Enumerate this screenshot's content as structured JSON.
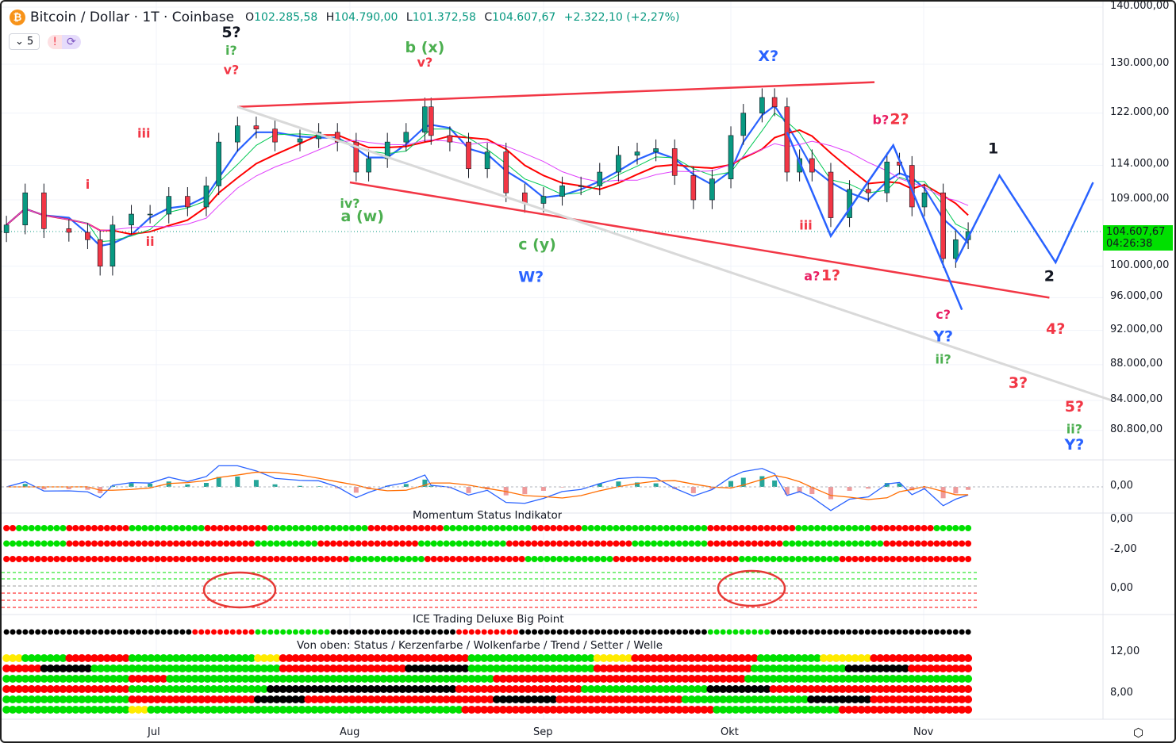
{
  "header": {
    "symbol": "Bitcoin / Dollar · 1T · Coinbase",
    "icon": "bitcoin-icon",
    "open_label": "O",
    "open": "102.285,58",
    "high_label": "H",
    "high": "104.790,00",
    "low_label": "L",
    "low": "101.372,58",
    "close_label": "C",
    "close": "104.607,67",
    "change": "+2.322,10 (+2,27%)"
  },
  "controls": {
    "collapse_count": "5",
    "alert_glyph": "!",
    "sync_icon": "refresh-icon"
  },
  "last_price": {
    "price": "104.607,67",
    "countdown": "04:26:38",
    "color": "#00e000"
  },
  "price_axis": [
    "140.000,00",
    "130.000,00",
    "122.000,00",
    "114.000,00",
    "109.000,00",
    "100.000,00",
    "96.000,00",
    "92.000,00",
    "88.000,00",
    "84.000,00",
    "80.800,00"
  ],
  "pane_axes": {
    "macd": [
      "0,00"
    ],
    "momentum": [
      "0,00",
      "-2,00",
      "0,00"
    ],
    "status": [
      "12,00",
      "8,00"
    ]
  },
  "time_axis": [
    "Jul",
    "Aug",
    "Sep",
    "Okt",
    "Nov"
  ],
  "pane_titles": {
    "momentum": "Momentum Status Indikator",
    "bigpoint": "ICE Trading Deluxe Big Point",
    "status": "Von oben: Status / Kerzenfarbe / Wolkenfarbe / Trend / Setter / Welle"
  },
  "colors": {
    "up": "#089981",
    "down": "#f23645",
    "trendline": "#f23645",
    "projection": "#2962ff",
    "green": "#00e000",
    "red": "#ff0000",
    "yellow": "#ffeb00",
    "black": "#000000"
  },
  "chart_data": {
    "type": "candlestick",
    "scale": "log",
    "ylim": [
      78000,
      140500
    ],
    "closes": [
      [
        "2025-06-07",
        105500
      ],
      [
        "2025-06-10",
        110000
      ],
      [
        "2025-06-13",
        105000
      ],
      [
        "2025-06-17",
        104500
      ],
      [
        "2025-06-20",
        103500
      ],
      [
        "2025-06-22",
        100000
      ],
      [
        "2025-06-24",
        105500
      ],
      [
        "2025-06-27",
        107000
      ],
      [
        "2025-06-30",
        107000
      ],
      [
        "2025-07-03",
        109500
      ],
      [
        "2025-07-06",
        108000
      ],
      [
        "2025-07-09",
        111000
      ],
      [
        "2025-07-11",
        117500
      ],
      [
        "2025-07-14",
        120000
      ],
      [
        "2025-07-17",
        119500
      ],
      [
        "2025-07-20",
        117500
      ],
      [
        "2025-07-24",
        118000
      ],
      [
        "2025-07-27",
        119000
      ],
      [
        "2025-07-30",
        117500
      ],
      [
        "2025-08-02",
        113000
      ],
      [
        "2025-08-04",
        115000
      ],
      [
        "2025-08-07",
        117500
      ],
      [
        "2025-08-10",
        119000
      ],
      [
        "2025-08-13",
        123000
      ],
      [
        "2025-08-14",
        118500
      ],
      [
        "2025-08-17",
        117500
      ],
      [
        "2025-08-20",
        113500
      ],
      [
        "2025-08-23",
        116000
      ],
      [
        "2025-08-26",
        110000
      ],
      [
        "2025-08-29",
        108500
      ],
      [
        "2025-09-01",
        109500
      ],
      [
        "2025-09-04",
        111000
      ],
      [
        "2025-09-07",
        111000
      ],
      [
        "2025-09-10",
        113000
      ],
      [
        "2025-09-13",
        115500
      ],
      [
        "2025-09-16",
        116000
      ],
      [
        "2025-09-19",
        116500
      ],
      [
        "2025-09-22",
        112500
      ],
      [
        "2025-09-25",
        109000
      ],
      [
        "2025-09-28",
        112000
      ],
      [
        "2025-10-01",
        118500
      ],
      [
        "2025-10-03",
        122000
      ],
      [
        "2025-10-06",
        124500
      ],
      [
        "2025-10-08",
        123000
      ],
      [
        "2025-10-10",
        113000
      ],
      [
        "2025-10-12",
        115000
      ],
      [
        "2025-10-14",
        113000
      ],
      [
        "2025-10-17",
        106500
      ],
      [
        "2025-10-20",
        110500
      ],
      [
        "2025-10-23",
        110000
      ],
      [
        "2025-10-26",
        114500
      ],
      [
        "2025-10-28",
        114000
      ],
      [
        "2025-10-30",
        108000
      ],
      [
        "2025-11-01",
        110000
      ],
      [
        "2025-11-04",
        101000
      ],
      [
        "2025-11-06",
        103500
      ],
      [
        "2025-11-08",
        104607.67
      ]
    ],
    "trendlines": [
      {
        "color": "#f23645",
        "points": [
          [
            "2025-07-14",
            123000
          ],
          [
            "2025-10-24",
            127000
          ]
        ]
      },
      {
        "color": "#f23645",
        "points": [
          [
            "2025-08-01",
            111500
          ],
          [
            "2025-11-21",
            96000
          ]
        ]
      },
      {
        "color": "#d9d9d9",
        "points": [
          [
            "2025-07-14",
            123000
          ],
          [
            "2025-12-01",
            84000
          ]
        ]
      },
      {
        "color": "#2962ff",
        "points": [
          [
            "2025-10-10",
            119000
          ],
          [
            "2025-10-17",
            104000
          ],
          [
            "2025-10-27",
            117000
          ],
          [
            "2025-11-07",
            94500
          ]
        ]
      },
      {
        "color": "#2962ff",
        "points": [
          [
            "2025-11-06",
            100500
          ],
          [
            "2025-11-13",
            112500
          ],
          [
            "2025-11-22",
            100500
          ],
          [
            "2025-11-28",
            111500
          ]
        ]
      }
    ],
    "annotations": [
      {
        "text": "5?",
        "date": "2025-07-13",
        "price": 134600,
        "color": "#131722"
      },
      {
        "text": "i?",
        "date": "2025-07-13",
        "price": 131600,
        "color": "#4caf50"
      },
      {
        "text": "v?",
        "date": "2025-07-13",
        "price": 128300,
        "color": "#f23645"
      },
      {
        "text": "b (x)",
        "date": "2025-08-13",
        "price": 132000,
        "color": "#4caf50"
      },
      {
        "text": "v?",
        "date": "2025-08-13",
        "price": 129600,
        "color": "#f23645"
      },
      {
        "text": "X?",
        "date": "2025-10-07",
        "price": 130500,
        "color": "#2962ff"
      },
      {
        "text": "iii",
        "date": "2025-06-29",
        "price": 118200,
        "color": "#f23645"
      },
      {
        "text": "i",
        "date": "2025-06-20",
        "price": 110600,
        "color": "#f23645"
      },
      {
        "text": "ii",
        "date": "2025-06-30",
        "price": 102700,
        "color": "#f23645"
      },
      {
        "text": "iv?",
        "date": "2025-08-01",
        "price": 107900,
        "color": "#4caf50"
      },
      {
        "text": "a (w)",
        "date": "2025-08-03",
        "price": 106000,
        "color": "#4caf50"
      },
      {
        "text": "c (y)",
        "date": "2025-08-31",
        "price": 102200,
        "color": "#4caf50"
      },
      {
        "text": "W?",
        "date": "2025-08-30",
        "price": 98000,
        "color": "#2962ff"
      },
      {
        "text": "iii",
        "date": "2025-10-13",
        "price": 104900,
        "color": "#f23645"
      },
      {
        "text": "a?",
        "date": "2025-10-14",
        "price": 98200,
        "color": "#e91e63"
      },
      {
        "text": "1?",
        "date": "2025-10-17",
        "price": 98200,
        "color": "#f23645"
      },
      {
        "text": "b?",
        "date": "2025-10-25",
        "price": 120300,
        "color": "#e91e63"
      },
      {
        "text": "2?",
        "date": "2025-10-28",
        "price": 120300,
        "color": "#f23645"
      },
      {
        "text": "c?",
        "date": "2025-11-04",
        "price": 93400,
        "color": "#e91e63"
      },
      {
        "text": "Y?",
        "date": "2025-11-04",
        "price": 90700,
        "color": "#2962ff"
      },
      {
        "text": "ii?",
        "date": "2025-11-04",
        "price": 88100,
        "color": "#4caf50"
      },
      {
        "text": "1",
        "date": "2025-11-12",
        "price": 115800,
        "color": "#131722"
      },
      {
        "text": "2",
        "date": "2025-11-21",
        "price": 98100,
        "color": "#131722"
      },
      {
        "text": "3?",
        "date": "2025-11-16",
        "price": 85400,
        "color": "#f23645"
      },
      {
        "text": "4?",
        "date": "2025-11-22",
        "price": 91600,
        "color": "#f23645"
      },
      {
        "text": "5?",
        "date": "2025-11-25",
        "price": 82800,
        "color": "#f23645"
      },
      {
        "text": "ii?",
        "date": "2025-11-25",
        "price": 80500,
        "color": "#4caf50"
      },
      {
        "text": "Y?",
        "date": "2025-11-25",
        "price": 78800,
        "color": "#2962ff"
      }
    ],
    "dot_rows": {
      "momentum": [
        [
          [
            "#ff0000",
            2
          ],
          [
            "#00e000",
            8
          ],
          [
            "#ff0000",
            10
          ],
          [
            "#00e000",
            12
          ],
          [
            "#ff0000",
            10
          ],
          [
            "#00e000",
            16
          ],
          [
            "#ff0000",
            12
          ],
          [
            "#00e000",
            14
          ],
          [
            "#ff0000",
            8
          ],
          [
            "#00e000",
            20
          ],
          [
            "#ff0000",
            14
          ],
          [
            "#00e000",
            12
          ],
          [
            "#ff0000",
            10
          ],
          [
            "#00e000",
            6
          ]
        ],
        [
          [
            "#00e000",
            10
          ],
          [
            "#ff0000",
            30
          ],
          [
            "#00e000",
            10
          ],
          [
            "#ff0000",
            16
          ],
          [
            "#00e000",
            14
          ],
          [
            "#ff0000",
            20
          ],
          [
            "#00e000",
            12
          ],
          [
            "#ff0000",
            12
          ],
          [
            "#00e000",
            16
          ],
          [
            "#ff0000",
            14
          ]
        ],
        [
          [
            "#ff0000",
            55
          ],
          [
            "#00e000",
            12
          ],
          [
            "#ff0000",
            16
          ],
          [
            "#00e000",
            14
          ],
          [
            "#ff0000",
            20
          ],
          [
            "#00e000",
            16
          ],
          [
            "#ff0000",
            21
          ]
        ]
      ],
      "bigpoint": [
        [
          [
            "#000000",
            30
          ],
          [
            "#ff0000",
            10
          ],
          [
            "#00e000",
            12
          ],
          [
            "#000000",
            20
          ],
          [
            "#ff0000",
            10
          ],
          [
            "#000000",
            30
          ],
          [
            "#00e000",
            10
          ],
          [
            "#000000",
            32
          ]
        ]
      ],
      "status": [
        [
          [
            "#ffeb00",
            3
          ],
          [
            "#00e000",
            7
          ],
          [
            "#ff0000",
            10
          ],
          [
            "#00e000",
            20
          ],
          [
            "#ffeb00",
            4
          ],
          [
            "#ff0000",
            30
          ],
          [
            "#00e000",
            20
          ],
          [
            "#ffeb00",
            6
          ],
          [
            "#ff0000",
            20
          ],
          [
            "#00e000",
            10
          ],
          [
            "#ffeb00",
            8
          ],
          [
            "#ff0000",
            16
          ]
        ],
        [
          [
            "#ff0000",
            6
          ],
          [
            "#000000",
            8
          ],
          [
            "#00e000",
            30
          ],
          [
            "#ff0000",
            20
          ],
          [
            "#000000",
            10
          ],
          [
            "#00e000",
            20
          ],
          [
            "#ff0000",
            25
          ],
          [
            "#00e000",
            15
          ],
          [
            "#000000",
            10
          ],
          [
            "#ff0000",
            10
          ]
        ],
        [
          [
            "#00e000",
            20
          ],
          [
            "#ff0000",
            6
          ],
          [
            "#00e000",
            52
          ],
          [
            "#ff0000",
            40
          ],
          [
            "#00e000",
            36
          ]
        ],
        [
          [
            "#ff0000",
            20
          ],
          [
            "#00e000",
            22
          ],
          [
            "#000000",
            30
          ],
          [
            "#ff0000",
            20
          ],
          [
            "#00e000",
            20
          ],
          [
            "#000000",
            10
          ],
          [
            "#ff0000",
            32
          ]
        ],
        [
          [
            "#00e000",
            20
          ],
          [
            "#ff0000",
            20
          ],
          [
            "#000000",
            8
          ],
          [
            "#ff0000",
            30
          ],
          [
            "#000000",
            10
          ],
          [
            "#ff0000",
            20
          ],
          [
            "#00e000",
            20
          ],
          [
            "#000000",
            10
          ],
          [
            "#ff0000",
            16
          ]
        ],
        [
          [
            "#00e000",
            20
          ],
          [
            "#ffeb00",
            3
          ],
          [
            "#00e000",
            50
          ],
          [
            "#ff0000",
            40
          ],
          [
            "#00e000",
            20
          ],
          [
            "#ff0000",
            21
          ]
        ]
      ]
    }
  }
}
